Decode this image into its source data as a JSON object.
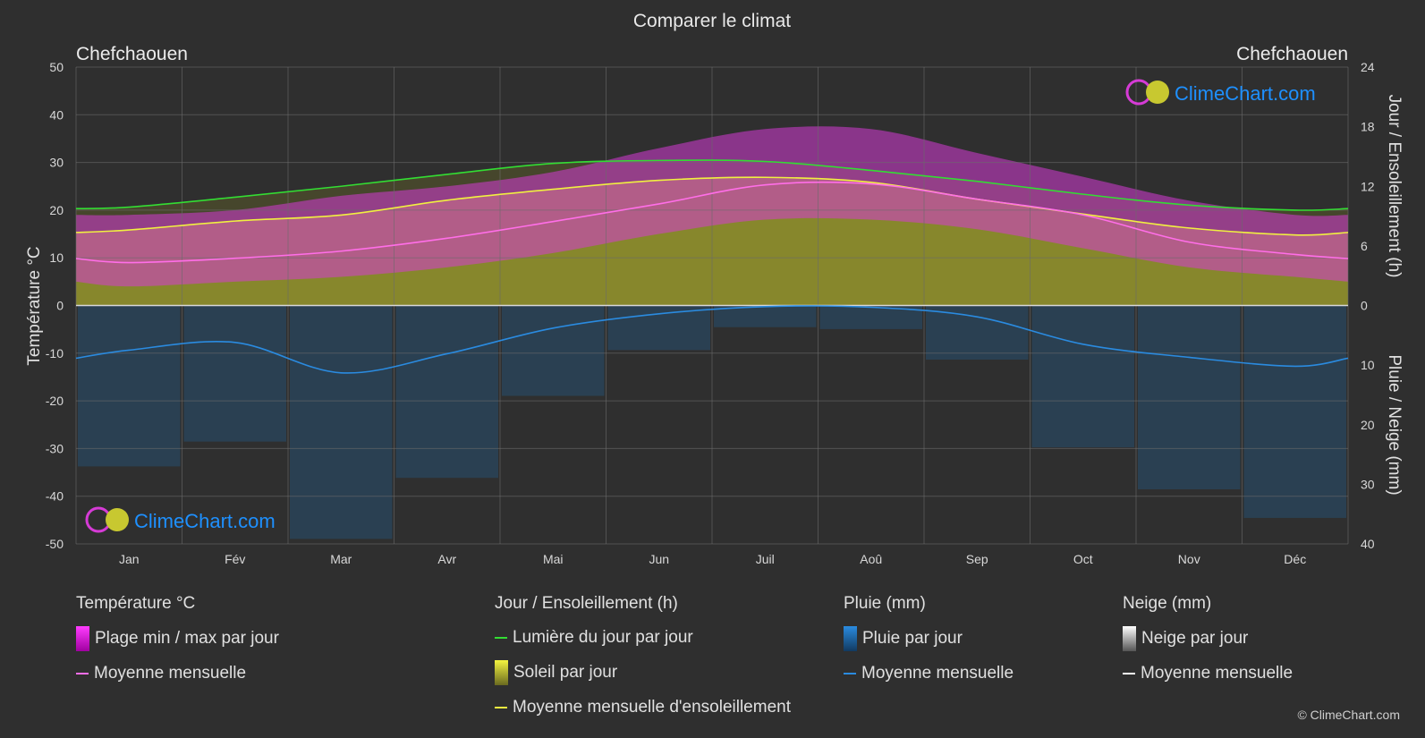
{
  "title": "Comparer le climat",
  "location_left": "Chefchaouen",
  "location_right": "Chefchaouen",
  "logo_text": "ClimeChart.com",
  "copyright": "© ClimeChart.com",
  "colors": {
    "background": "#2f2f2f",
    "temp_range": "#d63bd6",
    "temp_mean": "#ff6ee8",
    "daylight": "#33dd33",
    "sunshine_area": "#9d9d2c",
    "sunshine_mean": "#f0f040",
    "rain": "#1f6fb0",
    "rain_mean": "#2a8be0",
    "snow_mean": "#ffffff",
    "logo_blue": "#1e90ff"
  },
  "chart_data": {
    "type": "area",
    "categories": [
      "Jan",
      "Fév",
      "Mar",
      "Avr",
      "Mai",
      "Jun",
      "Juil",
      "Aoû",
      "Sep",
      "Oct",
      "Nov",
      "Déc"
    ],
    "axes": {
      "left": {
        "label": "Température °C",
        "min": -50,
        "max": 50,
        "ticks": [
          50,
          40,
          30,
          20,
          10,
          0,
          -10,
          -20,
          -30,
          -40,
          -50
        ]
      },
      "right_top": {
        "label": "Jour / Ensoleillement (h)",
        "min": 0,
        "max": 24,
        "ticks": [
          24,
          18,
          12,
          6,
          0
        ]
      },
      "right_bottom": {
        "label": "Pluie / Neige (mm)",
        "min": 0,
        "max": 40,
        "ticks": [
          10,
          20,
          30,
          40
        ]
      }
    },
    "series": [
      {
        "name": "Lumière du jour par jour",
        "unit": "h",
        "values": [
          9.9,
          10.9,
          12.0,
          13.2,
          14.3,
          14.6,
          14.5,
          13.6,
          12.5,
          11.2,
          10.1,
          9.6
        ]
      },
      {
        "name": "Moyenne mensuelle d'ensoleillement",
        "unit": "h",
        "values": [
          7.6,
          8.5,
          9.1,
          10.6,
          11.7,
          12.6,
          12.9,
          12.4,
          10.7,
          9.2,
          7.8,
          7.1
        ]
      },
      {
        "name": "Moyenne mensuelle",
        "kind": "temperature",
        "unit": "°C",
        "values": [
          9.0,
          9.9,
          11.4,
          14.1,
          17.6,
          21.3,
          25.3,
          25.5,
          22.3,
          19.0,
          13.3,
          10.7
        ]
      },
      {
        "name": "Plage min / max par jour",
        "unit": "°C",
        "min": [
          4,
          5,
          6,
          8,
          11,
          15,
          18,
          18,
          16,
          12,
          8,
          6
        ],
        "max": [
          19,
          20,
          23,
          25,
          28,
          33,
          37,
          37,
          32,
          27,
          22,
          19
        ]
      },
      {
        "name": "Moyenne mensuelle",
        "kind": "rain",
        "unit": "mm",
        "values": [
          7.5,
          6.2,
          11.3,
          8.1,
          3.8,
          1.4,
          0.2,
          0.3,
          1.9,
          6.5,
          8.7,
          10.2
        ]
      },
      {
        "name": "Moyenne mensuelle",
        "kind": "snow",
        "unit": "mm",
        "values": [
          0,
          0,
          0,
          0,
          0,
          0,
          0,
          0,
          0,
          0,
          0,
          0
        ]
      }
    ]
  },
  "legend": {
    "temperature": {
      "title": "Température °C",
      "items": [
        "Plage min / max par jour",
        "Moyenne mensuelle"
      ]
    },
    "sun": {
      "title": "Jour / Ensoleillement (h)",
      "items": [
        "Lumière du jour par jour",
        "Soleil par jour",
        "Moyenne mensuelle d'ensoleillement"
      ]
    },
    "rain": {
      "title": "Pluie (mm)",
      "items": [
        "Pluie par jour",
        "Moyenne mensuelle"
      ]
    },
    "snow": {
      "title": "Neige (mm)",
      "items": [
        "Neige par jour",
        "Moyenne mensuelle"
      ]
    }
  }
}
